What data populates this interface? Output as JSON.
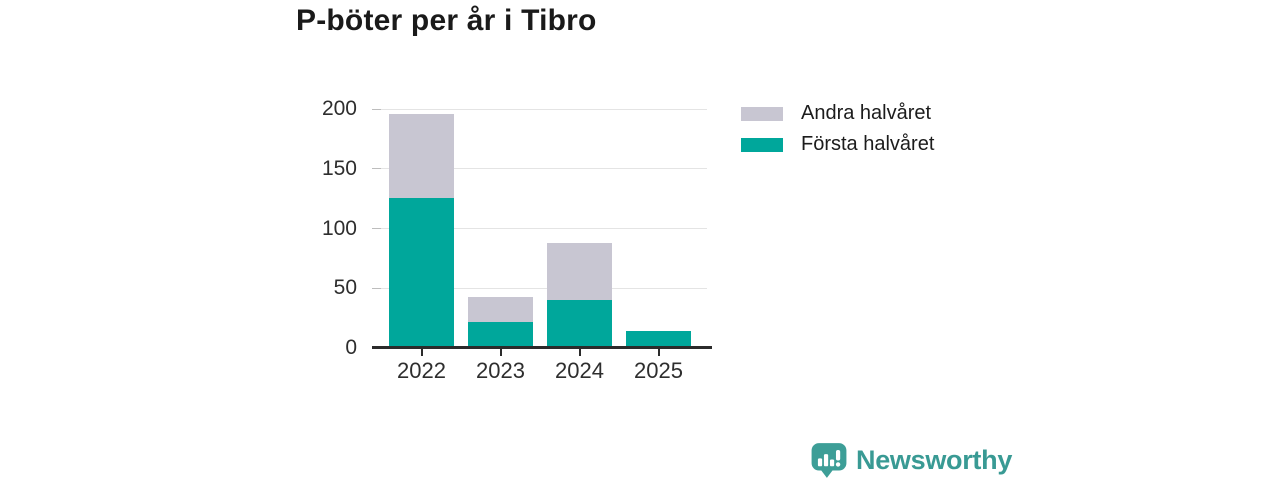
{
  "title": "P-böter per år i Tibro",
  "chart_data": {
    "type": "bar",
    "stacked": true,
    "title": "P-böter per år i Tibro",
    "categories": [
      "2022",
      "2023",
      "2024",
      "2025"
    ],
    "series": [
      {
        "name": "Första halvåret",
        "color": "#00a79b",
        "values": [
          125,
          21,
          39,
          13
        ]
      },
      {
        "name": "Andra halvåret",
        "color": "#c8c6d2",
        "values": [
          70,
          21,
          48,
          0
        ]
      }
    ],
    "totals": [
      195,
      42,
      87,
      13
    ],
    "xlabel": "",
    "ylabel": "",
    "ylim": [
      0,
      200
    ],
    "yticks": [
      0,
      50,
      100,
      150,
      200
    ],
    "grid": true,
    "grid_color": "#e4e4e4",
    "tick_stub_color": "#bdbdbd",
    "axis_color": "#2b2b2b",
    "legend_position": "right",
    "legend": [
      {
        "label": "Andra halvåret",
        "color": "#c8c6d2"
      },
      {
        "label": "Första halvåret",
        "color": "#00a79b"
      }
    ]
  },
  "branding": {
    "logo_text": "Newsworthy",
    "logo_color": "#399a94"
  }
}
